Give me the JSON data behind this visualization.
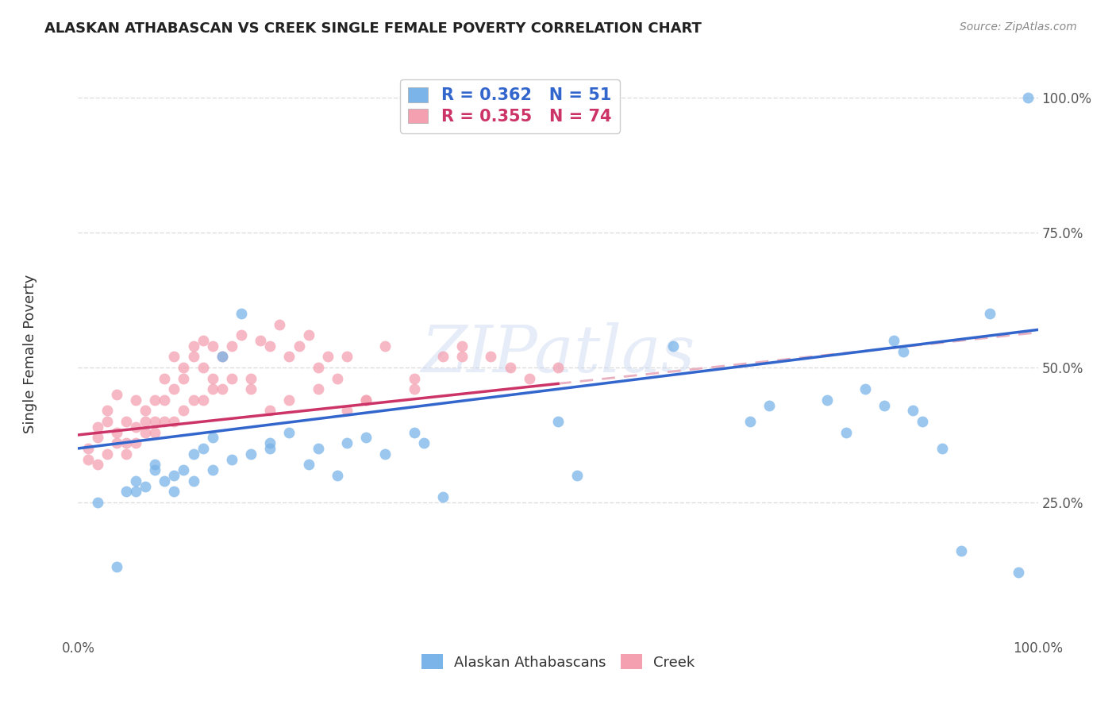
{
  "title": "ALASKAN ATHABASCAN VS CREEK SINGLE FEMALE POVERTY CORRELATION CHART",
  "source": "Source: ZipAtlas.com",
  "ylabel": "Single Female Poverty",
  "background_color": "#ffffff",
  "blue_color": "#7ab4e8",
  "pink_color": "#f4a0b0",
  "blue_line_color": "#3366cc",
  "pink_line_color": "#cc3366",
  "pink_dash_color": "#e8b0c0",
  "grid_color": "#dddddd",
  "legend_blue_label": "R = 0.362   N = 51",
  "legend_pink_label": "R = 0.355   N = 74",
  "legend_blue_group": "Alaskan Athabascans",
  "legend_pink_group": "Creek",
  "watermark": "ZIPatlas",
  "blue_intercept": 0.35,
  "blue_slope": 0.22,
  "pink_intercept": 0.375,
  "pink_slope": 0.19,
  "blue_scatter_x": [
    0.02,
    0.04,
    0.05,
    0.06,
    0.07,
    0.08,
    0.09,
    0.1,
    0.11,
    0.12,
    0.13,
    0.14,
    0.15,
    0.17,
    0.2,
    0.22,
    0.25,
    0.27,
    0.3,
    0.35,
    0.38,
    0.5,
    0.52,
    0.62,
    0.7,
    0.72,
    0.78,
    0.8,
    0.82,
    0.84,
    0.85,
    0.86,
    0.87,
    0.88,
    0.9,
    0.92,
    0.95,
    0.98,
    0.99,
    0.06,
    0.08,
    0.1,
    0.12,
    0.14,
    0.16,
    0.18,
    0.2,
    0.24,
    0.28,
    0.32,
    0.36
  ],
  "blue_scatter_y": [
    0.25,
    0.13,
    0.27,
    0.29,
    0.28,
    0.31,
    0.29,
    0.3,
    0.31,
    0.34,
    0.35,
    0.37,
    0.52,
    0.6,
    0.36,
    0.38,
    0.35,
    0.3,
    0.37,
    0.38,
    0.26,
    0.4,
    0.3,
    0.54,
    0.4,
    0.43,
    0.44,
    0.38,
    0.46,
    0.43,
    0.55,
    0.53,
    0.42,
    0.4,
    0.35,
    0.16,
    0.6,
    0.12,
    1.0,
    0.27,
    0.32,
    0.27,
    0.29,
    0.31,
    0.33,
    0.34,
    0.35,
    0.32,
    0.36,
    0.34,
    0.36
  ],
  "pink_scatter_x": [
    0.01,
    0.01,
    0.02,
    0.02,
    0.03,
    0.03,
    0.04,
    0.04,
    0.05,
    0.05,
    0.06,
    0.06,
    0.07,
    0.07,
    0.08,
    0.08,
    0.09,
    0.09,
    0.1,
    0.1,
    0.11,
    0.11,
    0.12,
    0.12,
    0.13,
    0.13,
    0.14,
    0.14,
    0.15,
    0.16,
    0.17,
    0.18,
    0.19,
    0.2,
    0.21,
    0.22,
    0.23,
    0.24,
    0.25,
    0.26,
    0.27,
    0.28,
    0.3,
    0.32,
    0.35,
    0.38,
    0.4,
    0.43,
    0.47,
    0.5,
    0.02,
    0.03,
    0.04,
    0.05,
    0.06,
    0.07,
    0.08,
    0.09,
    0.1,
    0.11,
    0.12,
    0.13,
    0.14,
    0.15,
    0.16,
    0.18,
    0.2,
    0.22,
    0.25,
    0.28,
    0.3,
    0.35,
    0.4,
    0.45
  ],
  "pink_scatter_y": [
    0.35,
    0.33,
    0.37,
    0.39,
    0.4,
    0.42,
    0.38,
    0.45,
    0.36,
    0.4,
    0.39,
    0.44,
    0.4,
    0.42,
    0.44,
    0.4,
    0.44,
    0.48,
    0.46,
    0.52,
    0.48,
    0.5,
    0.52,
    0.54,
    0.5,
    0.55,
    0.54,
    0.48,
    0.52,
    0.54,
    0.56,
    0.46,
    0.55,
    0.54,
    0.58,
    0.52,
    0.54,
    0.56,
    0.5,
    0.52,
    0.48,
    0.52,
    0.44,
    0.54,
    0.48,
    0.52,
    0.54,
    0.52,
    0.48,
    0.5,
    0.32,
    0.34,
    0.36,
    0.34,
    0.36,
    0.38,
    0.38,
    0.4,
    0.4,
    0.42,
    0.44,
    0.44,
    0.46,
    0.46,
    0.48,
    0.48,
    0.42,
    0.44,
    0.46,
    0.42,
    0.44,
    0.46,
    0.52,
    0.5
  ]
}
